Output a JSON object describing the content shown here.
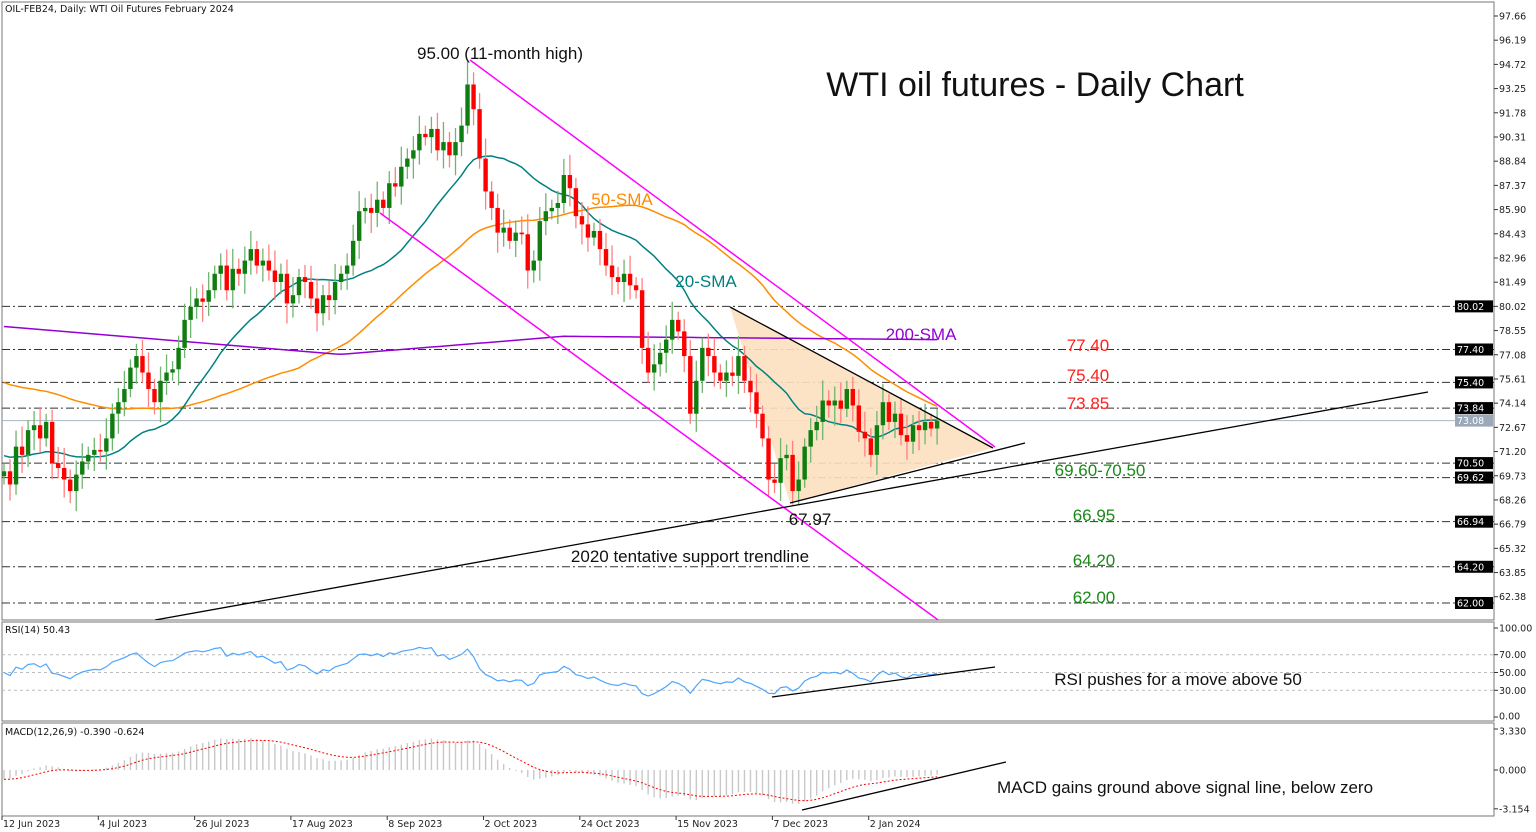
{
  "header": {
    "symbol_line": "OIL-FEB24, Daily:  WTI Oil Futures February 2024"
  },
  "chart_data": {
    "type": "candlestick",
    "title": "WTI oil futures - Daily Chart",
    "x_tick_labels": [
      "12 Jun 2023",
      "4 Jul 2023",
      "26 Jul 2023",
      "17 Aug 2023",
      "8 Sep 2023",
      "2 Oct 2023",
      "24 Oct 2023",
      "15 Nov 2023",
      "7 Dec 2023",
      "2 Jan 2024"
    ],
    "y_tick_labels": [
      "97.66",
      "96.19",
      "94.72",
      "93.25",
      "91.78",
      "90.31",
      "88.84",
      "87.37",
      "85.90",
      "84.43",
      "82.96",
      "81.49",
      "80.02",
      "78.55",
      "77.08",
      "75.61",
      "74.14",
      "72.67",
      "71.20",
      "69.73",
      "68.26",
      "66.79",
      "65.32",
      "63.85",
      "62.38"
    ],
    "ylim": [
      61.0,
      98.6
    ],
    "closes": [
      70.0,
      69.2,
      71.5,
      71.0,
      72.5,
      72.8,
      72.0,
      73.0,
      70.5,
      70.2,
      69.5,
      68.8,
      69.8,
      70.6,
      71.0,
      71.3,
      71.2,
      72.0,
      73.5,
      74.2,
      75.0,
      76.3,
      77.0,
      76.0,
      75.0,
      74.2,
      75.5,
      76.0,
      76.2,
      77.5,
      79.2,
      80.0,
      80.5,
      80.3,
      81.0,
      82.0,
      82.5,
      81.0,
      82.3,
      82.0,
      82.8,
      83.5,
      82.5,
      82.8,
      82.2,
      81.5,
      82.0,
      80.2,
      80.7,
      81.8,
      81.5,
      80.5,
      79.6,
      80.7,
      80.4,
      81.5,
      82.0,
      82.5,
      84.0,
      85.8,
      86.0,
      85.7,
      86.5,
      86.0,
      87.5,
      87.3,
      88.5,
      89.0,
      89.5,
      90.5,
      90.3,
      90.8,
      89.5,
      90.0,
      89.2,
      90.0,
      91.0,
      93.5,
      92.0,
      89.0,
      87.0,
      86.0,
      84.5,
      84.8,
      84.0,
      84.5,
      84.4,
      82.2,
      82.8,
      85.2,
      85.8,
      86.0,
      86.3,
      88.0,
      87.2,
      85.5,
      85.0,
      84.2,
      84.6,
      83.5,
      82.5,
      81.8,
      81.5,
      82.0,
      81.3,
      81.0,
      77.5,
      76.0,
      76.5,
      77.2,
      78.0,
      79.2,
      78.5,
      77.0,
      73.5,
      75.5,
      77.5,
      77.0,
      76.0,
      75.5,
      76.0,
      75.8,
      77.0,
      75.5,
      74.8,
      73.5,
      72.0,
      69.5,
      69.3,
      70.8,
      71.0,
      68.8,
      69.5,
      71.5,
      72.5,
      73.0,
      74.3,
      74.0,
      74.3,
      73.8,
      75.0,
      74.0,
      72.4,
      72.0,
      71.0,
      72.8,
      74.2,
      73.0,
      73.5,
      72.2,
      71.8,
      72.8,
      72.5,
      73.0,
      72.6,
      73.08
    ],
    "current_price": "73.08",
    "levels": [
      {
        "value": 80.02,
        "label": "80.02"
      },
      {
        "value": 77.4,
        "label": "77.40"
      },
      {
        "value": 75.4,
        "label": "75.40"
      },
      {
        "value": 73.84,
        "label": "73.84"
      },
      {
        "value": 70.5,
        "label": "70.50"
      },
      {
        "value": 69.62,
        "label": "69.62"
      },
      {
        "value": 66.94,
        "label": "66.94"
      },
      {
        "value": 64.2,
        "label": "64.20"
      },
      {
        "value": 62.0,
        "label": "62.00"
      }
    ],
    "moving_averages": [
      {
        "name": "20-SMA",
        "period": 20,
        "color": "#008080"
      },
      {
        "name": "50-SMA",
        "period": 50,
        "color": "#ff8c00"
      },
      {
        "name": "200-SMA",
        "period": 200,
        "color": "#9400d3"
      }
    ],
    "annotations": {
      "high": "95.00 (11-month high)",
      "low": "67.97",
      "support": "2020 tentative support trendline",
      "res1": "77.40",
      "res2": "75.40",
      "res3": "73.85",
      "sup1": "69.60-70.50",
      "sup2": "66.95",
      "sup3": "64.20",
      "sup4": "62.00"
    },
    "rsi": {
      "label": "RSI(14) 50.43",
      "ticks": [
        "100.00",
        "70.00",
        "50.00",
        "30.00",
        "0.00"
      ],
      "note": "RSI pushes for a move above 50"
    },
    "macd": {
      "label": "MACD(12,26,9) -0.390 -0.624",
      "ticks": [
        "3.330",
        "0.000",
        "-3.154"
      ],
      "note": "MACD gains ground above signal line, below zero"
    },
    "colors": {
      "bull": "#0f7d0f",
      "bear": "#ff0000",
      "channel": "#ff00ff",
      "triangle_fill": "#fde0bf",
      "rsi": "#4da6ff",
      "signal": "#ff0000",
      "hist": "#c8c8c8"
    }
  }
}
